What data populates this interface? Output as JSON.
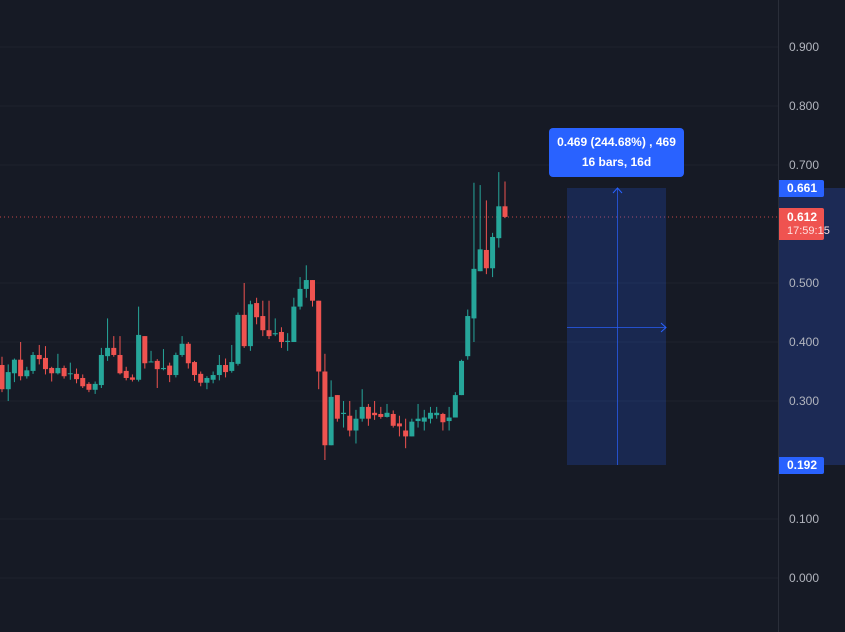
{
  "chart_data": {
    "type": "candlestick",
    "price_axis": {
      "ticks": [
        "0.900",
        "0.800",
        "0.700",
        "0.500",
        "0.400",
        "0.300",
        "0.100",
        "0.000"
      ],
      "range": [
        -0.09,
        0.98
      ],
      "side": "right"
    },
    "colors": {
      "up": "#26a69a",
      "down": "#ef5350",
      "background": "#161a25",
      "measure": "#2962ff"
    },
    "ohlc": [
      [
        0.361,
        0.375,
        0.315,
        0.32
      ],
      [
        0.32,
        0.362,
        0.3,
        0.349
      ],
      [
        0.347,
        0.372,
        0.332,
        0.37
      ],
      [
        0.37,
        0.4,
        0.335,
        0.342
      ],
      [
        0.342,
        0.358,
        0.338,
        0.352
      ],
      [
        0.351,
        0.383,
        0.346,
        0.378
      ],
      [
        0.378,
        0.395,
        0.362,
        0.371
      ],
      [
        0.373,
        0.393,
        0.345,
        0.354
      ],
      [
        0.356,
        0.358,
        0.333,
        0.347
      ],
      [
        0.347,
        0.38,
        0.345,
        0.356
      ],
      [
        0.356,
        0.36,
        0.338,
        0.342
      ],
      [
        0.347,
        0.365,
        0.336,
        0.347
      ],
      [
        0.346,
        0.355,
        0.33,
        0.337
      ],
      [
        0.339,
        0.345,
        0.322,
        0.325
      ],
      [
        0.329,
        0.332,
        0.315,
        0.319
      ],
      [
        0.319,
        0.333,
        0.312,
        0.329
      ],
      [
        0.327,
        0.39,
        0.322,
        0.378
      ],
      [
        0.376,
        0.44,
        0.368,
        0.39
      ],
      [
        0.39,
        0.41,
        0.375,
        0.378
      ],
      [
        0.378,
        0.41,
        0.345,
        0.347
      ],
      [
        0.351,
        0.358,
        0.335,
        0.339
      ],
      [
        0.34,
        0.345,
        0.333,
        0.336
      ],
      [
        0.336,
        0.46,
        0.333,
        0.412
      ],
      [
        0.41,
        0.41,
        0.355,
        0.364
      ],
      [
        0.366,
        0.385,
        0.366,
        0.367
      ],
      [
        0.368,
        0.371,
        0.322,
        0.354
      ],
      [
        0.354,
        0.388,
        0.352,
        0.356
      ],
      [
        0.36,
        0.365,
        0.332,
        0.344
      ],
      [
        0.344,
        0.382,
        0.34,
        0.378
      ],
      [
        0.378,
        0.41,
        0.375,
        0.397
      ],
      [
        0.397,
        0.4,
        0.355,
        0.364
      ],
      [
        0.366,
        0.368,
        0.334,
        0.344
      ],
      [
        0.346,
        0.35,
        0.325,
        0.331
      ],
      [
        0.331,
        0.342,
        0.32,
        0.339
      ],
      [
        0.336,
        0.35,
        0.33,
        0.344
      ],
      [
        0.344,
        0.378,
        0.335,
        0.361
      ],
      [
        0.361,
        0.372,
        0.34,
        0.349
      ],
      [
        0.351,
        0.395,
        0.348,
        0.366
      ],
      [
        0.363,
        0.45,
        0.36,
        0.446
      ],
      [
        0.446,
        0.5,
        0.39,
        0.393
      ],
      [
        0.393,
        0.47,
        0.385,
        0.464
      ],
      [
        0.466,
        0.475,
        0.43,
        0.442
      ],
      [
        0.444,
        0.47,
        0.41,
        0.42
      ],
      [
        0.42,
        0.47,
        0.405,
        0.41
      ],
      [
        0.413,
        0.44,
        0.41,
        0.415
      ],
      [
        0.417,
        0.425,
        0.39,
        0.4
      ],
      [
        0.4,
        0.415,
        0.385,
        0.402
      ],
      [
        0.4,
        0.475,
        0.4,
        0.46
      ],
      [
        0.46,
        0.51,
        0.455,
        0.49
      ],
      [
        0.49,
        0.53,
        0.475,
        0.505
      ],
      [
        0.505,
        0.505,
        0.46,
        0.47
      ],
      [
        0.47,
        0.47,
        0.32,
        0.35
      ],
      [
        0.35,
        0.38,
        0.2,
        0.225
      ],
      [
        0.225,
        0.335,
        0.225,
        0.307
      ],
      [
        0.31,
        0.31,
        0.265,
        0.27
      ],
      [
        0.278,
        0.3,
        0.255,
        0.28
      ],
      [
        0.275,
        0.3,
        0.24,
        0.25
      ],
      [
        0.25,
        0.285,
        0.228,
        0.27
      ],
      [
        0.27,
        0.32,
        0.265,
        0.29
      ],
      [
        0.29,
        0.295,
        0.258,
        0.27
      ],
      [
        0.28,
        0.3,
        0.268,
        0.276
      ],
      [
        0.278,
        0.29,
        0.27,
        0.273
      ],
      [
        0.273,
        0.295,
        0.272,
        0.28
      ],
      [
        0.278,
        0.284,
        0.255,
        0.258
      ],
      [
        0.262,
        0.275,
        0.24,
        0.257
      ],
      [
        0.25,
        0.27,
        0.22,
        0.24
      ],
      [
        0.24,
        0.27,
        0.24,
        0.265
      ],
      [
        0.266,
        0.295,
        0.255,
        0.27
      ],
      [
        0.265,
        0.285,
        0.25,
        0.272
      ],
      [
        0.27,
        0.29,
        0.262,
        0.28
      ],
      [
        0.276,
        0.29,
        0.27,
        0.28
      ],
      [
        0.278,
        0.28,
        0.25,
        0.264
      ],
      [
        0.266,
        0.29,
        0.25,
        0.272
      ],
      [
        0.272,
        0.315,
        0.272,
        0.31
      ],
      [
        0.31,
        0.37,
        0.31,
        0.368
      ],
      [
        0.376,
        0.455,
        0.37,
        0.444
      ],
      [
        0.44,
        0.67,
        0.4,
        0.524
      ],
      [
        0.52,
        0.666,
        0.52,
        0.557
      ],
      [
        0.556,
        0.64,
        0.515,
        0.525
      ],
      [
        0.525,
        0.585,
        0.51,
        0.578
      ],
      [
        0.576,
        0.688,
        0.56,
        0.63
      ],
      [
        0.63,
        0.672,
        0.61,
        0.612
      ]
    ],
    "last_price": 0.612,
    "measure": {
      "top": 0.661,
      "bottom": 0.192,
      "bars": 16
    }
  },
  "labels": {
    "measure_line1": "0.469 (244.68%) , 469",
    "measure_line2": "16 bars, 16d",
    "measure_top": "0.661",
    "measure_bottom": "0.192",
    "last_price": "0.612",
    "countdown": "17:59:15"
  }
}
